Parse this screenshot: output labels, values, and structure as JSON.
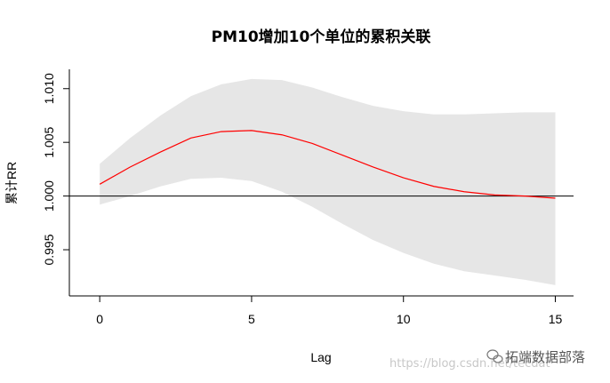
{
  "chart_data": {
    "type": "line",
    "title": "PM10增加10个单位的累积关联",
    "xlabel": "Lag",
    "ylabel": "累计RR",
    "xlim": [
      -1,
      15.6
    ],
    "ylim": [
      0.9907,
      1.0118
    ],
    "x_ticks": [
      0,
      5,
      10,
      15
    ],
    "x_tick_labels": [
      "0",
      "5",
      "10",
      "15"
    ],
    "y_ticks": [
      0.995,
      1.0,
      1.005,
      1.01
    ],
    "y_tick_labels": [
      "0.995",
      "1.000",
      "1.005",
      "1.010"
    ],
    "reference_line": 1.0,
    "grid": false,
    "legend": "none",
    "series": [
      {
        "x": [
          0,
          1,
          2,
          3,
          4,
          5,
          6,
          7,
          8,
          9,
          10,
          11,
          12,
          13,
          14,
          15
        ],
        "values": [
          1.0011,
          1.0027,
          1.0041,
          1.0054,
          1.006,
          1.0061,
          1.0057,
          1.0049,
          1.0038,
          1.0027,
          1.0017,
          1.0009,
          1.0004,
          1.0001,
          1.0,
          0.9998
        ],
        "lower": [
          0.9992,
          1.0,
          1.0009,
          1.0016,
          1.0017,
          1.0014,
          1.0004,
          0.999,
          0.9974,
          0.9959,
          0.9947,
          0.9937,
          0.993,
          0.9926,
          0.9922,
          0.9917
        ],
        "upper": [
          1.003,
          1.0054,
          1.0075,
          1.0093,
          1.0104,
          1.0109,
          1.0108,
          1.0101,
          1.0092,
          1.0084,
          1.0079,
          1.0076,
          1.0076,
          1.0077,
          1.0078,
          1.0078
        ],
        "color": "#ff0000",
        "band_color": "#e6e6e6"
      }
    ]
  },
  "watermark": {
    "url": "https://blog.csdn.net/tecdat",
    "brand": "拓端数据部落",
    "icon": "wechat-icon"
  }
}
